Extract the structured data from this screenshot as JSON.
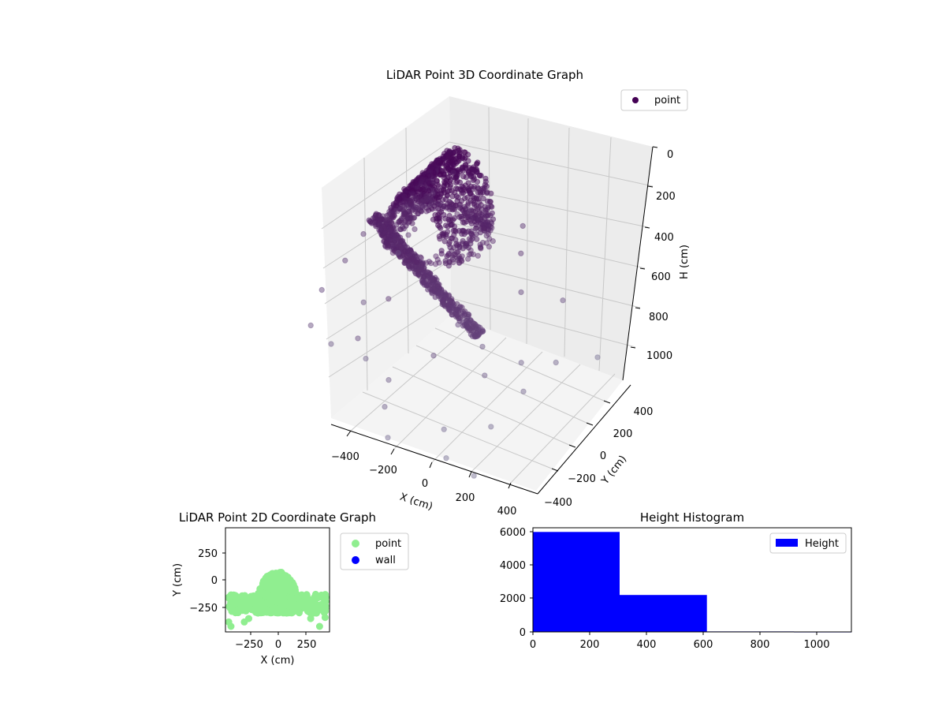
{
  "charts": {
    "scatter3d": {
      "title": "LiDAR Point 3D Coordinate Graph",
      "xlabel": "X (cm)",
      "ylabel": "Y (cm)",
      "zlabel": "H (cm)",
      "x_ticks": [
        "−400",
        "−200",
        "0",
        "200",
        "400"
      ],
      "y_ticks": [
        "−400",
        "−200",
        "0",
        "200",
        "400"
      ],
      "z_ticks": [
        "0",
        "200",
        "400",
        "600",
        "800",
        "1000"
      ],
      "legend": [
        "point"
      ]
    },
    "scatter2d": {
      "title": "LiDAR Point 2D Coordinate Graph",
      "xlabel": "X (cm)",
      "ylabel": "Y (cm)",
      "x_ticks": [
        "−250",
        "0",
        "250"
      ],
      "y_ticks": [
        "250",
        "0",
        "−250"
      ],
      "legend": [
        "point",
        "wall"
      ]
    },
    "histogram": {
      "title": "Height Histogram",
      "x_ticks": [
        "0",
        "200",
        "400",
        "600",
        "800",
        "1000"
      ],
      "y_ticks": [
        "0",
        "2000",
        "4000",
        "6000"
      ],
      "legend": [
        "Height"
      ]
    }
  },
  "chart_data": [
    {
      "type": "scatter",
      "title": "LiDAR Point 3D Coordinate Graph",
      "xlabel": "X (cm)",
      "ylabel": "Y (cm)",
      "zlabel": "H (cm)",
      "xlim": [
        -500,
        500
      ],
      "ylim": [
        -500,
        500
      ],
      "zlim": [
        0,
        1100
      ],
      "z_inverted": true,
      "grid": true,
      "legend": "top-right",
      "series": [
        {
          "name": "point",
          "color": "#440154",
          "dome": {
            "y_min": -200,
            "y_max": 150,
            "x_half_width": 150,
            "z_top": 60,
            "z_bottom": 380
          },
          "arc": {
            "x_range": [
              -250,
              350
            ],
            "z_range": [
              300,
              600
            ]
          },
          "outliers": [
            [
              -480,
              -150,
              700
            ],
            [
              -470,
              0,
              650
            ],
            [
              -450,
              100,
              580
            ],
            [
              -430,
              -300,
              760
            ],
            [
              -400,
              -200,
              900
            ],
            [
              -380,
              0,
              820
            ],
            [
              -350,
              200,
              700
            ],
            [
              -300,
              -100,
              1000
            ],
            [
              -300,
              200,
              600
            ],
            [
              -250,
              300,
              450
            ],
            [
              -200,
              -300,
              750
            ],
            [
              -200,
              100,
              480
            ],
            [
              -150,
              300,
              320
            ],
            [
              -120,
              -200,
              600
            ],
            [
              -100,
              200,
              380
            ],
            [
              -50,
              -300,
              900
            ],
            [
              0,
              -400,
              950
            ],
            [
              50,
              -450,
              1050
            ],
            [
              100,
              -200,
              800
            ],
            [
              120,
              400,
              550
            ],
            [
              150,
              -100,
              700
            ],
            [
              180,
              300,
              600
            ],
            [
              200,
              0,
              850
            ],
            [
              220,
              -300,
              1050
            ],
            [
              250,
              200,
              700
            ],
            [
              280,
              -100,
              900
            ],
            [
              300,
              -400,
              1100
            ],
            [
              320,
              100,
              950
            ],
            [
              350,
              350,
              800
            ],
            [
              380,
              -200,
              1050
            ],
            [
              400,
              0,
              1000
            ],
            [
              420,
              200,
              980
            ],
            [
              450,
              450,
              1100
            ],
            [
              470,
              -450,
              1100
            ]
          ]
        }
      ]
    },
    {
      "type": "scatter",
      "title": "LiDAR Point 2D Coordinate Graph",
      "xlabel": "X (cm)",
      "ylabel": "Y (cm)",
      "xlim": [
        -470,
        470
      ],
      "ylim": [
        -470,
        470
      ],
      "legend": "outside-right",
      "series": [
        {
          "name": "point",
          "color": "#90ee90",
          "dome": {
            "y_top": 75,
            "y_bottom": -300,
            "x_half_width": 200,
            "apron_x_half_width": 440,
            "apron_y": [
              -130,
              -300
            ]
          },
          "scattered": [
            [
              -440,
              -380
            ],
            [
              -420,
              -420
            ],
            [
              -300,
              -380
            ],
            [
              -260,
              -350
            ],
            [
              300,
              -350
            ],
            [
              350,
              -300
            ],
            [
              380,
              -420
            ],
            [
              430,
              -340
            ],
            [
              -250,
              -260
            ],
            [
              260,
              -260
            ]
          ]
        },
        {
          "name": "wall",
          "color": "#0000ff",
          "points": []
        }
      ]
    },
    {
      "type": "bar",
      "title": "Height Histogram",
      "xlim": [
        0,
        1120
      ],
      "ylim": [
        0,
        6200
      ],
      "legend": "top-right",
      "series": [
        {
          "name": "Height",
          "color": "#0000ff",
          "bins": [
            {
              "x0": 0,
              "x1": 305,
              "count": 5950
            },
            {
              "x0": 305,
              "x1": 612,
              "count": 2200
            },
            {
              "x0": 612,
              "x1": 918,
              "count": 30
            },
            {
              "x0": 918,
              "x1": 1120,
              "count": 10
            }
          ]
        }
      ]
    }
  ]
}
